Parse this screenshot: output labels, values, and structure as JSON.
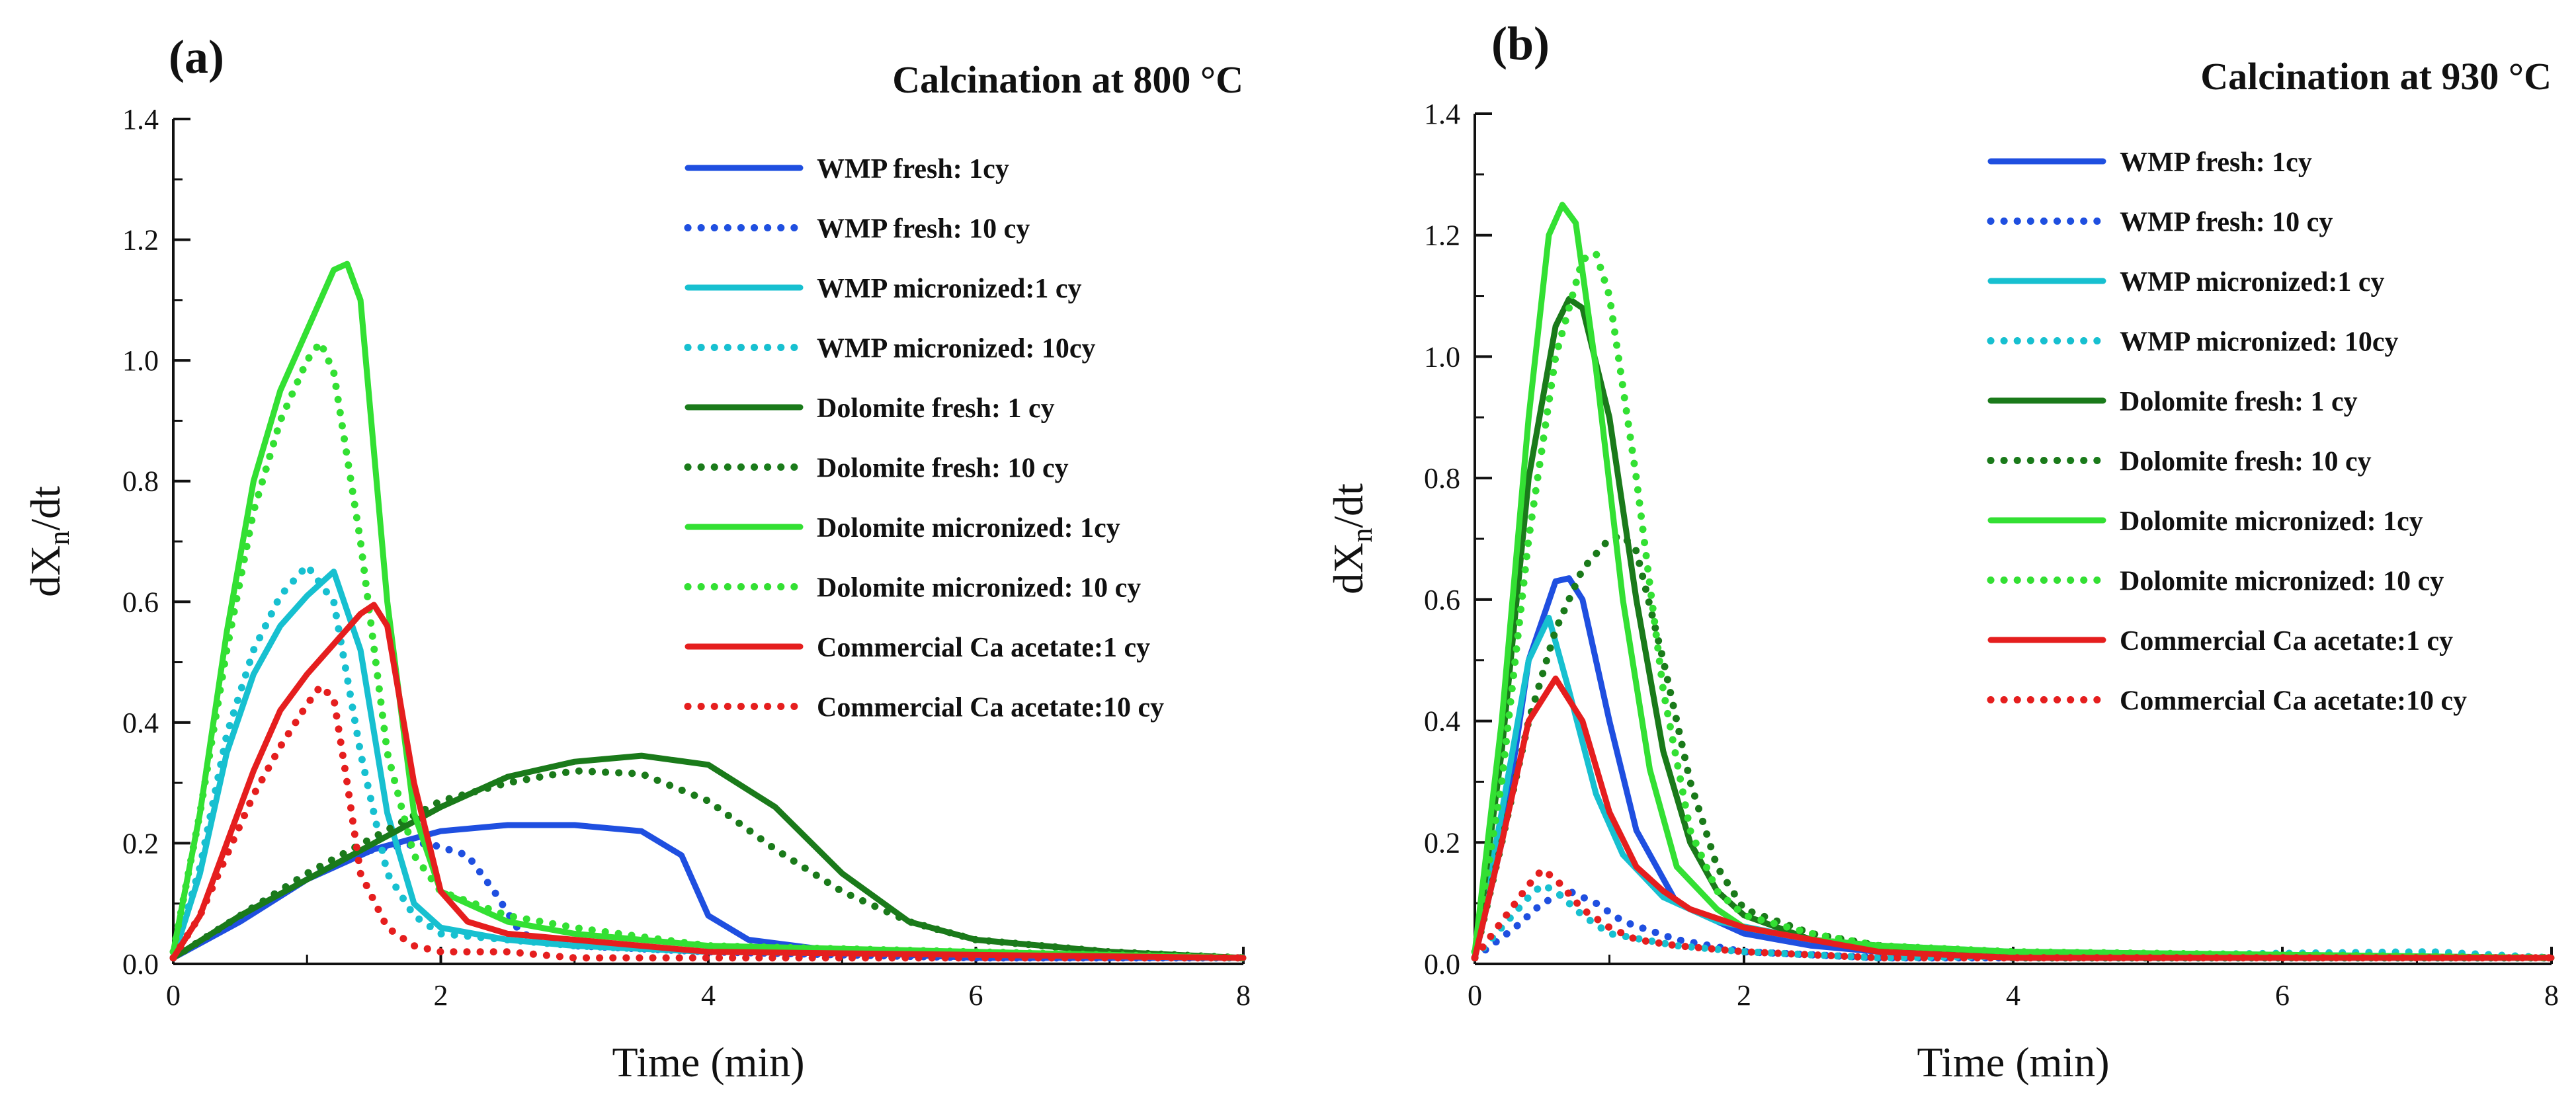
{
  "chart_data": [
    {
      "panel_label": "(a)",
      "type": "line",
      "title": "Calcination at 800 °C",
      "xlabel": "Time (min)",
      "ylabel_main": "dX",
      "ylabel_sub": "n",
      "ylabel_tail": "/dt",
      "xlim": [
        0,
        8
      ],
      "ylim": [
        0,
        1.4
      ],
      "xticks": [
        "0",
        "2",
        "4",
        "6",
        "8"
      ],
      "yticks": [
        "0.0",
        "0.2",
        "0.4",
        "0.6",
        "0.8",
        "1.0",
        "1.2",
        "1.4"
      ],
      "legend_position": "top-right",
      "series": [
        {
          "name": "WMP fresh: 1cy",
          "color": "#1f4fe0",
          "style": "solid",
          "x": [
            0,
            0.5,
            1.0,
            1.5,
            2.0,
            2.5,
            3.0,
            3.5,
            3.8,
            4.0,
            4.3,
            5.0,
            6.0,
            8.0
          ],
          "y": [
            0.01,
            0.07,
            0.14,
            0.19,
            0.22,
            0.23,
            0.23,
            0.22,
            0.18,
            0.08,
            0.04,
            0.02,
            0.01,
            0.01
          ]
        },
        {
          "name": "WMP fresh: 10 cy",
          "color": "#1f4fe0",
          "style": "dotted",
          "x": [
            0,
            0.5,
            1.0,
            1.5,
            1.9,
            2.2,
            2.4,
            2.6,
            3.0,
            4.0,
            6.0,
            8.0
          ],
          "y": [
            0.01,
            0.08,
            0.15,
            0.19,
            0.2,
            0.18,
            0.12,
            0.05,
            0.03,
            0.02,
            0.01,
            0.01
          ]
        },
        {
          "name": "WMP micronized:1 cy",
          "color": "#17c0d0",
          "style": "solid",
          "x": [
            0,
            0.2,
            0.4,
            0.6,
            0.8,
            1.0,
            1.2,
            1.4,
            1.6,
            1.8,
            2.0,
            2.5,
            3.0,
            4.0,
            8.0
          ],
          "y": [
            0.01,
            0.15,
            0.35,
            0.48,
            0.56,
            0.61,
            0.65,
            0.52,
            0.25,
            0.1,
            0.06,
            0.04,
            0.03,
            0.02,
            0.01
          ]
        },
        {
          "name": "WMP micronized: 10cy",
          "color": "#17c0d0",
          "style": "dotted",
          "x": [
            0,
            0.2,
            0.4,
            0.6,
            0.8,
            1.0,
            1.2,
            1.4,
            1.6,
            1.8,
            2.0,
            2.5,
            3.0,
            4.0,
            8.0
          ],
          "y": [
            0.01,
            0.16,
            0.38,
            0.52,
            0.61,
            0.66,
            0.6,
            0.35,
            0.15,
            0.08,
            0.05,
            0.04,
            0.03,
            0.02,
            0.01
          ]
        },
        {
          "name": "Dolomite fresh: 1 cy",
          "color": "#1a7a1a",
          "style": "solid",
          "x": [
            0,
            0.5,
            1.0,
            1.5,
            2.0,
            2.5,
            3.0,
            3.5,
            4.0,
            4.5,
            5.0,
            5.5,
            6.0,
            7.0,
            8.0
          ],
          "y": [
            0.01,
            0.08,
            0.14,
            0.2,
            0.26,
            0.31,
            0.335,
            0.345,
            0.33,
            0.26,
            0.15,
            0.07,
            0.04,
            0.02,
            0.01
          ]
        },
        {
          "name": "Dolomite fresh: 10 cy",
          "color": "#1a7a1a",
          "style": "dotted",
          "x": [
            0,
            0.5,
            1.0,
            1.5,
            2.0,
            2.5,
            3.0,
            3.5,
            4.0,
            4.5,
            5.0,
            5.5,
            6.0,
            7.0,
            8.0
          ],
          "y": [
            0.01,
            0.08,
            0.15,
            0.21,
            0.27,
            0.3,
            0.32,
            0.315,
            0.27,
            0.19,
            0.12,
            0.07,
            0.04,
            0.02,
            0.01
          ]
        },
        {
          "name": "Dolomite micronized: 1cy",
          "color": "#33e033",
          "style": "solid",
          "x": [
            0,
            0.2,
            0.4,
            0.6,
            0.8,
            1.0,
            1.2,
            1.3,
            1.4,
            1.6,
            1.8,
            2.0,
            2.5,
            3.0,
            4.0,
            8.0
          ],
          "y": [
            0.02,
            0.25,
            0.55,
            0.8,
            0.95,
            1.05,
            1.15,
            1.16,
            1.1,
            0.6,
            0.25,
            0.12,
            0.07,
            0.05,
            0.03,
            0.01
          ]
        },
        {
          "name": "Dolomite micronized: 10 cy",
          "color": "#33e033",
          "style": "dotted",
          "x": [
            0,
            0.2,
            0.4,
            0.6,
            0.8,
            1.0,
            1.1,
            1.2,
            1.4,
            1.6,
            1.8,
            2.0,
            2.5,
            3.0,
            4.0,
            8.0
          ],
          "y": [
            0.02,
            0.25,
            0.52,
            0.75,
            0.9,
            1.0,
            1.03,
            0.98,
            0.7,
            0.35,
            0.18,
            0.12,
            0.08,
            0.06,
            0.03,
            0.01
          ]
        },
        {
          "name": "Commercial Ca acetate:1 cy",
          "color": "#e51e1e",
          "style": "solid",
          "x": [
            0,
            0.2,
            0.4,
            0.6,
            0.8,
            1.0,
            1.2,
            1.4,
            1.5,
            1.6,
            1.8,
            2.0,
            2.2,
            2.5,
            3.0,
            4.0,
            8.0
          ],
          "y": [
            0.01,
            0.08,
            0.2,
            0.32,
            0.42,
            0.48,
            0.53,
            0.58,
            0.595,
            0.56,
            0.3,
            0.12,
            0.07,
            0.05,
            0.04,
            0.02,
            0.01
          ]
        },
        {
          "name": "Commercial Ca acetate:10 cy",
          "color": "#e51e1e",
          "style": "dotted",
          "x": [
            0,
            0.2,
            0.4,
            0.6,
            0.8,
            1.0,
            1.1,
            1.2,
            1.3,
            1.4,
            1.6,
            1.8,
            2.0,
            2.5,
            3.0,
            4.0,
            8.0
          ],
          "y": [
            0.01,
            0.08,
            0.18,
            0.28,
            0.36,
            0.43,
            0.46,
            0.44,
            0.3,
            0.15,
            0.06,
            0.03,
            0.02,
            0.02,
            0.01,
            0.01,
            0.01
          ]
        }
      ]
    },
    {
      "panel_label": "(b)",
      "type": "line",
      "title": "Calcination at 930 °C",
      "xlabel": "Time (min)",
      "ylabel_main": "dX",
      "ylabel_sub": "n",
      "ylabel_tail": "/dt",
      "xlim": [
        0,
        8
      ],
      "ylim": [
        0,
        1.4
      ],
      "xticks": [
        "0",
        "2",
        "4",
        "6",
        "8"
      ],
      "yticks": [
        "0.0",
        "0.2",
        "0.4",
        "0.6",
        "0.8",
        "1.0",
        "1.2",
        "1.4"
      ],
      "legend_position": "top-right",
      "series": [
        {
          "name": "WMP fresh: 1cy",
          "color": "#1f4fe0",
          "style": "solid",
          "x": [
            0,
            0.2,
            0.4,
            0.6,
            0.7,
            0.8,
            1.0,
            1.2,
            1.5,
            2.0,
            2.5,
            3.0,
            4.0,
            8.0
          ],
          "y": [
            0.01,
            0.2,
            0.5,
            0.63,
            0.635,
            0.6,
            0.4,
            0.22,
            0.1,
            0.05,
            0.03,
            0.02,
            0.01,
            0.01
          ]
        },
        {
          "name": "WMP fresh: 10 cy",
          "color": "#1f4fe0",
          "style": "dotted",
          "x": [
            0,
            0.3,
            0.5,
            0.7,
            0.9,
            1.1,
            1.5,
            2.0,
            3.0,
            8.0
          ],
          "y": [
            0.01,
            0.06,
            0.1,
            0.12,
            0.1,
            0.07,
            0.04,
            0.02,
            0.01,
            0.01
          ]
        },
        {
          "name": "WMP micronized:1 cy",
          "color": "#17c0d0",
          "style": "solid",
          "x": [
            0,
            0.2,
            0.4,
            0.55,
            0.7,
            0.9,
            1.1,
            1.4,
            1.8,
            2.5,
            3.0,
            4.0,
            8.0
          ],
          "y": [
            0.01,
            0.25,
            0.5,
            0.57,
            0.45,
            0.28,
            0.18,
            0.11,
            0.07,
            0.04,
            0.03,
            0.02,
            0.01
          ]
        },
        {
          "name": "WMP micronized: 10cy",
          "color": "#17c0d0",
          "style": "dotted",
          "x": [
            0,
            0.2,
            0.4,
            0.5,
            0.6,
            0.8,
            1.0,
            1.5,
            2.0,
            3.0,
            7.1,
            8.0
          ],
          "y": [
            0.01,
            0.06,
            0.11,
            0.13,
            0.12,
            0.08,
            0.05,
            0.03,
            0.02,
            0.01,
            0.02,
            0.01
          ]
        },
        {
          "name": "Dolomite fresh: 1 cy",
          "color": "#1a7a1a",
          "style": "solid",
          "x": [
            0,
            0.2,
            0.4,
            0.6,
            0.7,
            0.8,
            1.0,
            1.2,
            1.4,
            1.6,
            1.8,
            2.0,
            2.5,
            3.0,
            4.0,
            8.0
          ],
          "y": [
            0.01,
            0.35,
            0.8,
            1.05,
            1.095,
            1.08,
            0.9,
            0.6,
            0.35,
            0.2,
            0.12,
            0.08,
            0.04,
            0.03,
            0.01,
            0.01
          ]
        },
        {
          "name": "Dolomite fresh: 10 cy",
          "color": "#1a7a1a",
          "style": "dotted",
          "x": [
            0,
            0.2,
            0.4,
            0.6,
            0.8,
            1.0,
            1.1,
            1.2,
            1.4,
            1.6,
            1.8,
            2.0,
            2.5,
            3.0,
            4.0,
            8.0
          ],
          "y": [
            0.01,
            0.2,
            0.4,
            0.55,
            0.65,
            0.7,
            0.705,
            0.68,
            0.5,
            0.3,
            0.16,
            0.09,
            0.05,
            0.03,
            0.01,
            0.01
          ]
        },
        {
          "name": "Dolomite micronized: 1cy",
          "color": "#33e033",
          "style": "solid",
          "x": [
            0,
            0.2,
            0.4,
            0.55,
            0.65,
            0.75,
            0.9,
            1.1,
            1.3,
            1.5,
            1.8,
            2.0,
            2.5,
            3.0,
            4.0,
            8.0
          ],
          "y": [
            0.02,
            0.4,
            0.9,
            1.2,
            1.25,
            1.22,
            0.98,
            0.6,
            0.32,
            0.16,
            0.09,
            0.06,
            0.04,
            0.03,
            0.02,
            0.01
          ]
        },
        {
          "name": "Dolomite micronized: 10 cy",
          "color": "#33e033",
          "style": "dotted",
          "x": [
            0,
            0.2,
            0.4,
            0.6,
            0.8,
            0.9,
            1.0,
            1.2,
            1.4,
            1.6,
            1.8,
            2.0,
            2.5,
            3.0,
            4.0,
            8.0
          ],
          "y": [
            0.02,
            0.3,
            0.7,
            1.0,
            1.16,
            1.17,
            1.1,
            0.8,
            0.45,
            0.22,
            0.12,
            0.08,
            0.05,
            0.03,
            0.02,
            0.01
          ]
        },
        {
          "name": "Commercial Ca acetate:1 cy",
          "color": "#e51e1e",
          "style": "solid",
          "x": [
            0,
            0.2,
            0.4,
            0.6,
            0.8,
            1.0,
            1.2,
            1.4,
            1.6,
            2.0,
            2.5,
            3.0,
            4.0,
            8.0
          ],
          "y": [
            0.01,
            0.2,
            0.4,
            0.47,
            0.4,
            0.25,
            0.16,
            0.12,
            0.09,
            0.06,
            0.04,
            0.02,
            0.01,
            0.01
          ]
        },
        {
          "name": "Commercial Ca acetate:10 cy",
          "color": "#e51e1e",
          "style": "dotted",
          "x": [
            0,
            0.2,
            0.4,
            0.5,
            0.6,
            0.8,
            1.0,
            1.2,
            1.5,
            2.0,
            3.0,
            8.0
          ],
          "y": [
            0.01,
            0.07,
            0.13,
            0.155,
            0.14,
            0.09,
            0.06,
            0.04,
            0.03,
            0.02,
            0.01,
            0.01
          ]
        }
      ]
    }
  ]
}
